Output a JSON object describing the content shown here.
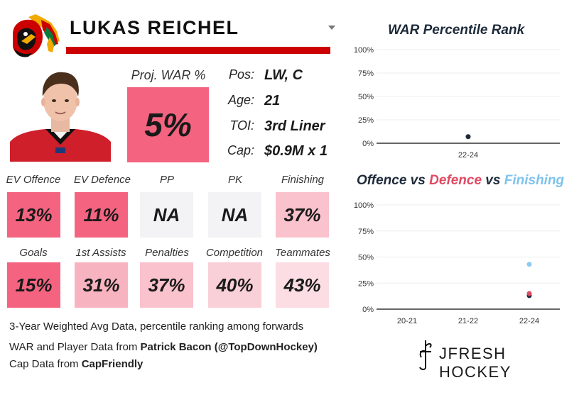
{
  "player": {
    "name": "LUKAS REICHEL",
    "proj_war_label": "Proj. WAR %",
    "proj_war_value": "5%",
    "info": [
      {
        "label": "Pos:",
        "value": "LW, C"
      },
      {
        "label": "Age:",
        "value": "21"
      },
      {
        "label": "TOI:",
        "value": "3rd Liner"
      },
      {
        "label": "Cap:",
        "value": "$0.9M x 1"
      }
    ]
  },
  "stats_row1": [
    {
      "label": "EV Offence",
      "value": "13%",
      "color": "#f46480"
    },
    {
      "label": "EV Defence",
      "value": "11%",
      "color": "#f46480"
    },
    {
      "label": "PP",
      "value": "NA",
      "color": "#f3f3f5"
    },
    {
      "label": "PK",
      "value": "NA",
      "color": "#f3f3f5"
    },
    {
      "label": "Finishing",
      "value": "37%",
      "color": "#f9c2cd"
    }
  ],
  "stats_row2": [
    {
      "label": "Goals",
      "value": "15%",
      "color": "#f46480"
    },
    {
      "label": "1st Assists",
      "value": "31%",
      "color": "#f8b3c1"
    },
    {
      "label": "Penalties",
      "value": "37%",
      "color": "#f9c2cd"
    },
    {
      "label": "Competition",
      "value": "40%",
      "color": "#fad0d8"
    },
    {
      "label": "Teammates",
      "value": "43%",
      "color": "#fbdde3"
    }
  ],
  "footer": {
    "line1": "3-Year Weighted Avg Data, percentile ranking among forwards",
    "line2_prefix": "WAR and Player Data from ",
    "line2_source": "Patrick Bacon (@TopDownHockey)",
    "line3_prefix": "Cap Data from ",
    "line3_source": "CapFriendly",
    "brand": "JFRESH HOCKEY"
  },
  "chart_data": [
    {
      "type": "scatter",
      "title": "WAR Percentile Rank",
      "categories": [
        "22-24"
      ],
      "y_ticks": [
        "100%",
        "75%",
        "50%",
        "25%",
        "0%"
      ],
      "ylim": [
        0,
        100
      ],
      "series": [
        {
          "name": "WAR",
          "color": "#1d2a3a",
          "points": [
            {
              "x": "22-24",
              "y": 7
            }
          ]
        }
      ]
    },
    {
      "type": "scatter",
      "title_parts": [
        {
          "text": "Offence",
          "color": "#1d2a3a"
        },
        {
          "text": " vs ",
          "color": "#1d2a3a"
        },
        {
          "text": "Defence",
          "color": "#e04a62"
        },
        {
          "text": " vs ",
          "color": "#1d2a3a"
        },
        {
          "text": "Finishing",
          "color": "#7ec3ec"
        }
      ],
      "categories": [
        "20-21",
        "21-22",
        "22-24"
      ],
      "y_ticks": [
        "100%",
        "75%",
        "50%",
        "25%",
        "0%"
      ],
      "ylim": [
        0,
        100
      ],
      "series": [
        {
          "name": "Offence",
          "color": "#1d2a3a",
          "points": [
            {
              "x": "22-24",
              "y": 13
            }
          ]
        },
        {
          "name": "Defence",
          "color": "#e04a62",
          "points": [
            {
              "x": "22-24",
              "y": 15
            }
          ]
        },
        {
          "name": "Finishing",
          "color": "#8ecbf0",
          "points": [
            {
              "x": "22-24",
              "y": 43
            }
          ]
        }
      ]
    }
  ]
}
